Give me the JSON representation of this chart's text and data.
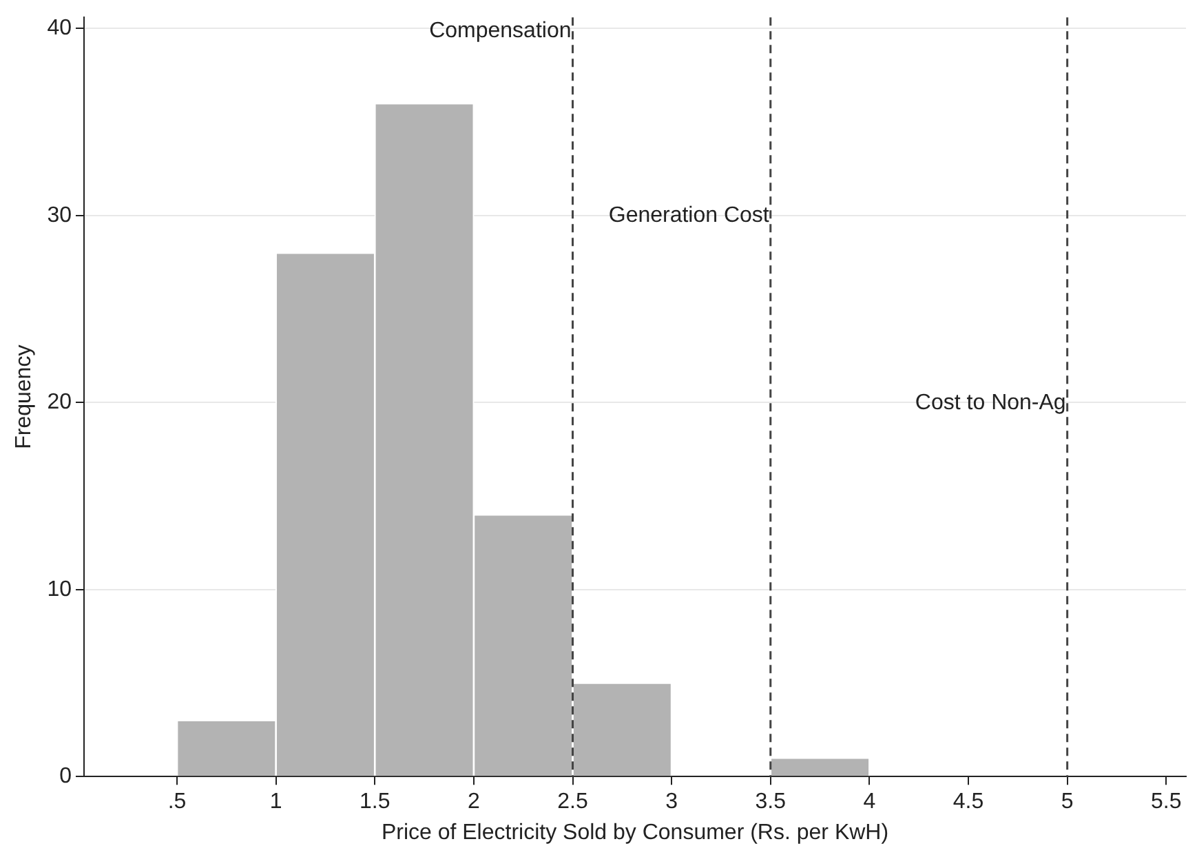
{
  "chart_data": {
    "type": "histogram",
    "xlabel": "Price of Electricity Sold by Consumer (Rs. per KwH)",
    "ylabel": "Frequency",
    "bins": [
      0.5,
      1,
      1.5,
      2,
      2.5,
      3,
      3.5,
      4
    ],
    "values": [
      3,
      28,
      36,
      14,
      5,
      0,
      1
    ],
    "color": "#b3b3b3",
    "xlim": [
      0.03,
      5.6
    ],
    "xticks": [
      {
        "value": 0.5,
        "label": ".5"
      },
      1,
      1.5,
      2,
      2.5,
      3,
      3.5,
      4,
      4.5,
      5,
      5.5
    ],
    "ylim": [
      0,
      40.6
    ],
    "yticks": [
      0,
      10,
      20,
      30,
      40
    ],
    "grid": "y",
    "ref_lines": [
      {
        "axis": "x",
        "value": 2.5,
        "label": "Compensation",
        "line_style": "dashed"
      },
      {
        "axis": "x",
        "value": 3.5,
        "label": "Generation Cost",
        "line_style": "dashed"
      },
      {
        "axis": "x",
        "value": 5,
        "label": "Cost to Non-Ag",
        "line_style": "dashed"
      }
    ]
  }
}
